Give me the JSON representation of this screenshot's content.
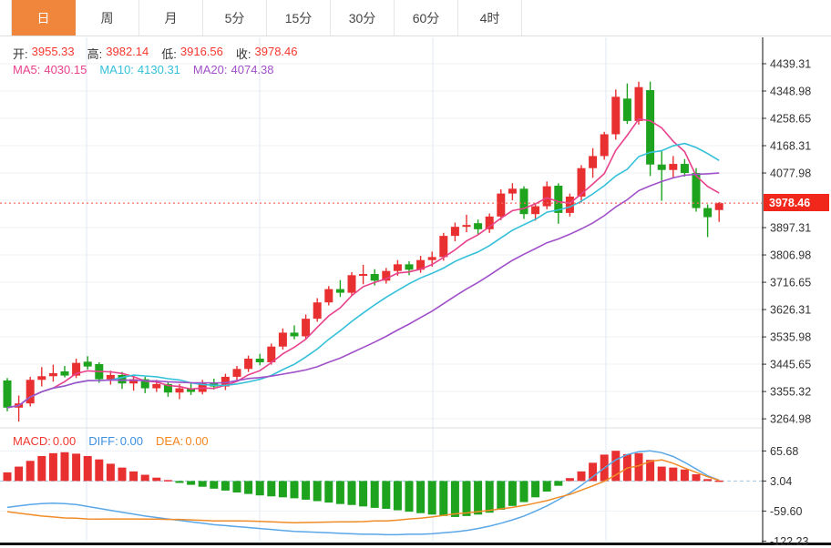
{
  "toolbar": {
    "tabs": [
      {
        "label": "日",
        "active": true
      },
      {
        "label": "周",
        "active": false
      },
      {
        "label": "月",
        "active": false
      },
      {
        "label": "5分",
        "active": false
      },
      {
        "label": "15分",
        "active": false
      },
      {
        "label": "30分",
        "active": false
      },
      {
        "label": "60分",
        "active": false
      },
      {
        "label": "4时",
        "active": false
      }
    ]
  },
  "ohlc": {
    "open_label": "开:",
    "open": "3955.33",
    "high_label": "高:",
    "high": "3982.14",
    "low_label": "低:",
    "low": "3916.56",
    "close_label": "收:",
    "close": "3978.46"
  },
  "ma": {
    "ma5_label": "MA5:",
    "ma5": "4030.15",
    "ma10_label": "MA10:",
    "ma10": "4130.31",
    "ma20_label": "MA20:",
    "ma20": "4074.38"
  },
  "macd_legend": {
    "macd_label": "MACD:",
    "macd": "0.00",
    "diff_label": "DIFF:",
    "diff": "0.00",
    "dea_label": "DEA:",
    "dea": "0.00"
  },
  "price_axis": {
    "current": "3978.46"
  },
  "colors": {
    "up": "#e93030",
    "down": "#1ea31e",
    "ma5": "#e8418c",
    "ma10": "#33c0d8",
    "ma20": "#a050c8",
    "diff_line": "#5aa7e8",
    "dea_line": "#f08c28",
    "accent_tab": "#f0863c",
    "badge": "#f2271b",
    "grid": "#edf1f6",
    "vgrid": "#e2e9f2",
    "axis_border": "#444",
    "dotted_price": "#f56a60",
    "zero_dash": "#9ec8e8"
  },
  "chart_data": {
    "type": "candlestick",
    "period_selected": "日",
    "price_axis": {
      "max": 4439.31,
      "min": 3264.98,
      "step": 90.33,
      "ticks": [
        4439.31,
        4348.98,
        4258.65,
        4168.31,
        4077.98,
        3897.31,
        3806.98,
        3716.65,
        3626.31,
        3535.98,
        3445.65,
        3355.32,
        3264.98
      ],
      "current_price": 3978.46
    },
    "ma_periods": [
      5,
      10,
      20
    ],
    "ma_last_values": {
      "ma5": 4030.15,
      "ma10": 4130.31,
      "ma20": 4074.38
    },
    "last_ohlc": {
      "open": 3955.33,
      "high": 3982.14,
      "low": 3916.56,
      "close": 3978.46
    },
    "candles": [
      [
        3392,
        3400,
        3290,
        3302
      ],
      [
        3302,
        3342,
        3256,
        3316
      ],
      [
        3316,
        3404,
        3306,
        3394
      ],
      [
        3394,
        3436,
        3372,
        3406
      ],
      [
        3406,
        3444,
        3388,
        3416
      ],
      [
        3422,
        3440,
        3402,
        3408
      ],
      [
        3408,
        3464,
        3400,
        3450
      ],
      [
        3454,
        3472,
        3428,
        3438
      ],
      [
        3446,
        3452,
        3384,
        3396
      ],
      [
        3396,
        3424,
        3378,
        3410
      ],
      [
        3410,
        3420,
        3364,
        3382
      ],
      [
        3382,
        3406,
        3358,
        3396
      ],
      [
        3396,
        3404,
        3350,
        3366
      ],
      [
        3366,
        3394,
        3354,
        3380
      ],
      [
        3380,
        3386,
        3338,
        3352
      ],
      [
        3352,
        3380,
        3330,
        3366
      ],
      [
        3366,
        3384,
        3344,
        3354
      ],
      [
        3354,
        3394,
        3346,
        3384
      ],
      [
        3384,
        3398,
        3362,
        3372
      ],
      [
        3372,
        3414,
        3360,
        3404
      ],
      [
        3404,
        3440,
        3392,
        3430
      ],
      [
        3430,
        3474,
        3420,
        3464
      ],
      [
        3464,
        3480,
        3442,
        3452
      ],
      [
        3452,
        3514,
        3444,
        3504
      ],
      [
        3504,
        3564,
        3494,
        3550
      ],
      [
        3550,
        3574,
        3528,
        3538
      ],
      [
        3538,
        3610,
        3530,
        3596
      ],
      [
        3596,
        3664,
        3586,
        3650
      ],
      [
        3650,
        3704,
        3640,
        3694
      ],
      [
        3694,
        3724,
        3668,
        3682
      ],
      [
        3682,
        3750,
        3672,
        3740
      ],
      [
        3740,
        3774,
        3710,
        3744
      ],
      [
        3744,
        3760,
        3706,
        3722
      ],
      [
        3722,
        3764,
        3712,
        3754
      ],
      [
        3754,
        3790,
        3738,
        3776
      ],
      [
        3776,
        3786,
        3740,
        3758
      ],
      [
        3758,
        3804,
        3748,
        3790
      ],
      [
        3790,
        3818,
        3768,
        3800
      ],
      [
        3800,
        3880,
        3788,
        3870
      ],
      [
        3870,
        3914,
        3852,
        3900
      ],
      [
        3900,
        3940,
        3882,
        3906
      ],
      [
        3912,
        3924,
        3876,
        3892
      ],
      [
        3892,
        3944,
        3880,
        3934
      ],
      [
        3934,
        4024,
        3922,
        4010
      ],
      [
        4010,
        4044,
        3988,
        4026
      ],
      [
        4026,
        4034,
        3926,
        3942
      ],
      [
        3942,
        3978,
        3920,
        3968
      ],
      [
        3968,
        4050,
        3958,
        4034
      ],
      [
        4036,
        4044,
        3910,
        3946
      ],
      [
        3946,
        4010,
        3934,
        4000
      ],
      [
        4000,
        4104,
        3980,
        4094
      ],
      [
        4094,
        4160,
        4062,
        4134
      ],
      [
        4134,
        4214,
        4122,
        4206
      ],
      [
        4206,
        4354,
        4188,
        4330
      ],
      [
        4324,
        4374,
        4240,
        4250
      ],
      [
        4250,
        4380,
        4238,
        4362
      ],
      [
        4352,
        4380,
        4068,
        4106
      ],
      [
        4106,
        4152,
        3986,
        4088
      ],
      [
        4088,
        4134,
        4060,
        4108
      ],
      [
        4108,
        4124,
        4066,
        4078
      ],
      [
        4078,
        4094,
        3950,
        3962
      ],
      [
        3962,
        3974,
        3866,
        3932
      ],
      [
        3955.33,
        3982.14,
        3916.56,
        3978.46
      ]
    ],
    "macd": {
      "ticks": [
        65.68,
        3.04,
        -59.6,
        -122.23
      ],
      "zero": 3.04,
      "hist": [
        18,
        30,
        42,
        52,
        58,
        60,
        57,
        52,
        45,
        36,
        28,
        20,
        13,
        7,
        2,
        -4,
        -8,
        -12,
        -16,
        -20,
        -24,
        -27,
        -30,
        -32,
        -34,
        -36,
        -39,
        -42,
        -45,
        -48,
        -50,
        -53,
        -56,
        -58,
        -61,
        -64,
        -67,
        -70,
        -73,
        -75,
        -73,
        -70,
        -66,
        -60,
        -52,
        -44,
        -34,
        -22,
        -10,
        6,
        20,
        38,
        55,
        63,
        56,
        58,
        44,
        30,
        28,
        24,
        14,
        4,
        1
      ],
      "diff": [
        -52,
        -49,
        -46,
        -44,
        -43,
        -44,
        -46,
        -50,
        -54,
        -58,
        -62,
        -66,
        -70,
        -73,
        -76,
        -79,
        -82,
        -85,
        -88,
        -90,
        -92,
        -94,
        -96,
        -98,
        -100,
        -102,
        -103,
        -104,
        -105,
        -106,
        -107,
        -108,
        -108,
        -109,
        -109,
        -108,
        -108,
        -107,
        -105,
        -103,
        -100,
        -96,
        -91,
        -85,
        -78,
        -70,
        -60,
        -49,
        -36,
        -22,
        -6,
        12,
        30,
        47,
        58,
        64,
        66,
        62,
        54,
        42,
        28,
        14,
        5
      ],
      "dea": [
        -61,
        -64,
        -67,
        -70,
        -72,
        -74,
        -74.5,
        -76,
        -76.5,
        -76,
        -76,
        -76,
        -76.5,
        -76.5,
        -77,
        -77,
        -78,
        -79,
        -80,
        -80,
        -80,
        -80.5,
        -81,
        -82,
        -83,
        -84,
        -83.5,
        -83,
        -82.5,
        -82,
        -82,
        -81.5,
        -80,
        -80,
        -78.5,
        -76,
        -74.5,
        -72,
        -68.5,
        -65.5,
        -63.5,
        -61,
        -58,
        -55,
        -52,
        -48,
        -43,
        -38,
        -31,
        -25,
        -16,
        -7,
        2.5,
        15.5,
        30,
        35,
        44,
        47,
        40,
        30,
        21,
        12,
        4.5
      ]
    }
  }
}
